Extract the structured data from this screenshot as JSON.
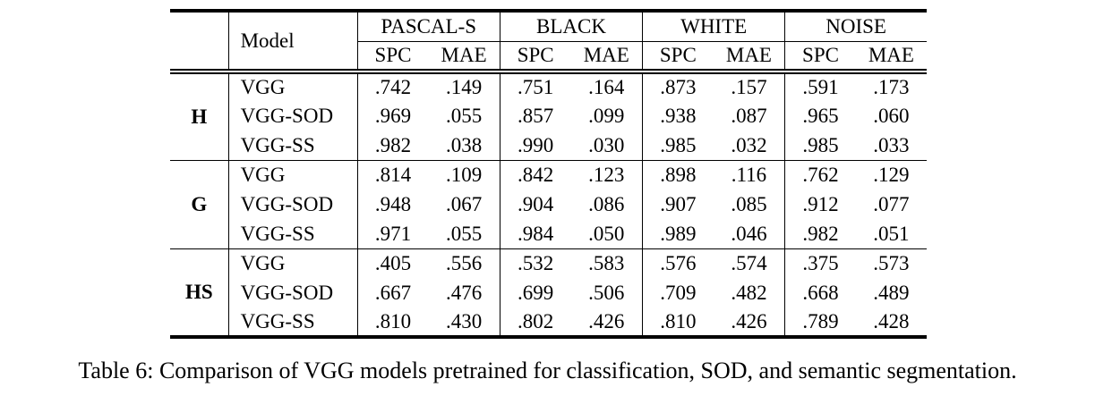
{
  "caption": "Table 6: Comparison of VGG models pretrained for classification, SOD, and semantic segmentation.",
  "table": {
    "model_header": "Model",
    "groups_header": [
      {
        "label": "PASCAL-S",
        "sub": [
          "SPC",
          "MAE"
        ]
      },
      {
        "label": "BLACK",
        "sub": [
          "SPC",
          "MAE"
        ]
      },
      {
        "label": "WHITE",
        "sub": [
          "SPC",
          "MAE"
        ]
      },
      {
        "label": "NOISE",
        "sub": [
          "SPC",
          "MAE"
        ]
      }
    ],
    "row_groups": [
      {
        "label": "H",
        "rows": [
          {
            "model": "VGG",
            "values": [
              ".742",
              ".149",
              ".751",
              ".164",
              ".873",
              ".157",
              ".591",
              ".173"
            ]
          },
          {
            "model": "VGG-SOD",
            "values": [
              ".969",
              ".055",
              ".857",
              ".099",
              ".938",
              ".087",
              ".965",
              ".060"
            ]
          },
          {
            "model": "VGG-SS",
            "values": [
              ".982",
              ".038",
              ".990",
              ".030",
              ".985",
              ".032",
              ".985",
              ".033"
            ]
          }
        ]
      },
      {
        "label": "G",
        "rows": [
          {
            "model": "VGG",
            "values": [
              ".814",
              ".109",
              ".842",
              ".123",
              ".898",
              ".116",
              ".762",
              ".129"
            ]
          },
          {
            "model": "VGG-SOD",
            "values": [
              ".948",
              ".067",
              ".904",
              ".086",
              ".907",
              ".085",
              ".912",
              ".077"
            ]
          },
          {
            "model": "VGG-SS",
            "values": [
              ".971",
              ".055",
              ".984",
              ".050",
              ".989",
              ".046",
              ".982",
              ".051"
            ]
          }
        ]
      },
      {
        "label": "HS",
        "rows": [
          {
            "model": "VGG",
            "values": [
              ".405",
              ".556",
              ".532",
              ".583",
              ".576",
              ".574",
              ".375",
              ".573"
            ]
          },
          {
            "model": "VGG-SOD",
            "values": [
              ".667",
              ".476",
              ".699",
              ".506",
              ".709",
              ".482",
              ".668",
              ".489"
            ]
          },
          {
            "model": "VGG-SS",
            "values": [
              ".810",
              ".430",
              ".802",
              ".426",
              ".810",
              ".426",
              ".789",
              ".428"
            ]
          }
        ]
      }
    ]
  }
}
